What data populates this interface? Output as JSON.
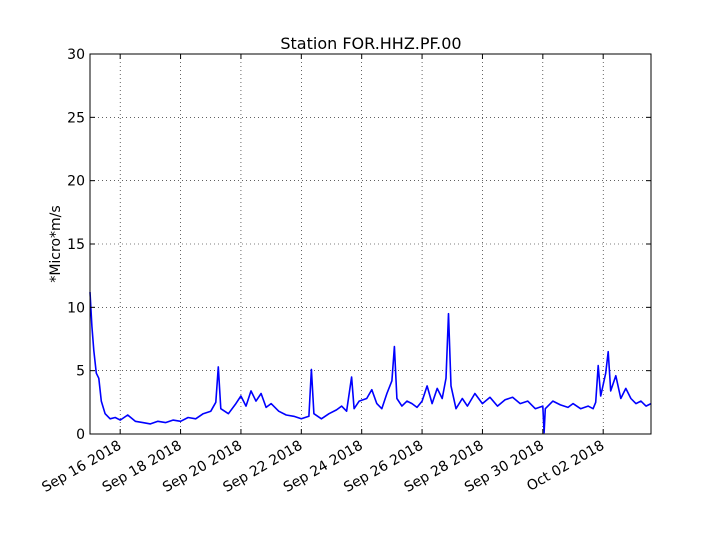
{
  "chart_data": {
    "type": "line",
    "title": "Station FOR.HHZ.PF.00",
    "xlabel": "",
    "ylabel": "*Micro*m/s",
    "ylim": [
      0,
      30
    ],
    "xlim": [
      "2018-09-15",
      "2018-10-03T14:00"
    ],
    "yticks": [
      0,
      5,
      10,
      15,
      20,
      25,
      30
    ],
    "xticks": [
      {
        "date": "2018-09-16",
        "label": "Sep 16 2018"
      },
      {
        "date": "2018-09-18",
        "label": "Sep 18 2018"
      },
      {
        "date": "2018-09-20",
        "label": "Sep 20 2018"
      },
      {
        "date": "2018-09-22",
        "label": "Sep 22 2018"
      },
      {
        "date": "2018-09-24",
        "label": "Sep 24 2018"
      },
      {
        "date": "2018-09-26",
        "label": "Sep 26 2018"
      },
      {
        "date": "2018-09-28",
        "label": "Sep 28 2018"
      },
      {
        "date": "2018-09-30",
        "label": "Sep 30 2018"
      },
      {
        "date": "2018-10-02",
        "label": "Oct 02 2018"
      }
    ],
    "grid": true,
    "series": [
      {
        "color": "#0000ff",
        "points": [
          [
            "2018-09-15T00:00",
            11.2
          ],
          [
            "2018-09-15T01:30",
            8.5
          ],
          [
            "2018-09-15T03:00",
            6.6
          ],
          [
            "2018-09-15T05:00",
            4.8
          ],
          [
            "2018-09-15T07:00",
            4.4
          ],
          [
            "2018-09-15T09:00",
            2.6
          ],
          [
            "2018-09-15T12:00",
            1.6
          ],
          [
            "2018-09-15T16:00",
            1.2
          ],
          [
            "2018-09-15T20:00",
            1.3
          ],
          [
            "2018-09-16T00:00",
            1.1
          ],
          [
            "2018-09-16T06:00",
            1.5
          ],
          [
            "2018-09-16T12:00",
            1.0
          ],
          [
            "2018-09-16T18:00",
            0.9
          ],
          [
            "2018-09-17T00:00",
            0.8
          ],
          [
            "2018-09-17T06:00",
            1.0
          ],
          [
            "2018-09-17T12:00",
            0.9
          ],
          [
            "2018-09-17T18:00",
            1.1
          ],
          [
            "2018-09-18T00:00",
            1.0
          ],
          [
            "2018-09-18T06:00",
            1.3
          ],
          [
            "2018-09-18T12:00",
            1.2
          ],
          [
            "2018-09-18T18:00",
            1.6
          ],
          [
            "2018-09-19T00:00",
            1.8
          ],
          [
            "2018-09-19T04:00",
            2.5
          ],
          [
            "2018-09-19T06:00",
            5.3
          ],
          [
            "2018-09-19T08:00",
            2.0
          ],
          [
            "2018-09-19T14:00",
            1.6
          ],
          [
            "2018-09-19T20:00",
            2.4
          ],
          [
            "2018-09-20T00:00",
            3.0
          ],
          [
            "2018-09-20T04:00",
            2.2
          ],
          [
            "2018-09-20T08:00",
            3.4
          ],
          [
            "2018-09-20T12:00",
            2.6
          ],
          [
            "2018-09-20T16:00",
            3.2
          ],
          [
            "2018-09-20T20:00",
            2.1
          ],
          [
            "2018-09-21T00:00",
            2.4
          ],
          [
            "2018-09-21T06:00",
            1.8
          ],
          [
            "2018-09-21T12:00",
            1.5
          ],
          [
            "2018-09-21T18:00",
            1.4
          ],
          [
            "2018-09-22T00:00",
            1.2
          ],
          [
            "2018-09-22T06:00",
            1.4
          ],
          [
            "2018-09-22T08:00",
            5.1
          ],
          [
            "2018-09-22T10:00",
            1.6
          ],
          [
            "2018-09-22T16:00",
            1.2
          ],
          [
            "2018-09-22T22:00",
            1.6
          ],
          [
            "2018-09-23T04:00",
            1.9
          ],
          [
            "2018-09-23T08:00",
            2.2
          ],
          [
            "2018-09-23T12:00",
            1.8
          ],
          [
            "2018-09-23T16:00",
            4.5
          ],
          [
            "2018-09-23T18:00",
            2.0
          ],
          [
            "2018-09-23T22:00",
            2.6
          ],
          [
            "2018-09-24T04:00",
            2.8
          ],
          [
            "2018-09-24T08:00",
            3.5
          ],
          [
            "2018-09-24T12:00",
            2.4
          ],
          [
            "2018-09-24T16:00",
            2.0
          ],
          [
            "2018-09-24T20:00",
            3.2
          ],
          [
            "2018-09-25T00:00",
            4.2
          ],
          [
            "2018-09-25T02:00",
            6.9
          ],
          [
            "2018-09-25T04:00",
            2.8
          ],
          [
            "2018-09-25T08:00",
            2.2
          ],
          [
            "2018-09-25T12:00",
            2.6
          ],
          [
            "2018-09-25T16:00",
            2.4
          ],
          [
            "2018-09-25T20:00",
            2.1
          ],
          [
            "2018-09-26T00:00",
            2.6
          ],
          [
            "2018-09-26T04:00",
            3.8
          ],
          [
            "2018-09-26T08:00",
            2.4
          ],
          [
            "2018-09-26T12:00",
            3.6
          ],
          [
            "2018-09-26T16:00",
            2.8
          ],
          [
            "2018-09-26T19:00",
            4.4
          ],
          [
            "2018-09-26T21:00",
            9.5
          ],
          [
            "2018-09-26T23:00",
            3.8
          ],
          [
            "2018-09-27T03:00",
            2.0
          ],
          [
            "2018-09-27T08:00",
            2.8
          ],
          [
            "2018-09-27T12:00",
            2.2
          ],
          [
            "2018-09-27T18:00",
            3.2
          ],
          [
            "2018-09-28T00:00",
            2.4
          ],
          [
            "2018-09-28T06:00",
            2.9
          ],
          [
            "2018-09-28T12:00",
            2.2
          ],
          [
            "2018-09-28T18:00",
            2.7
          ],
          [
            "2018-09-29T00:00",
            2.9
          ],
          [
            "2018-09-29T06:00",
            2.4
          ],
          [
            "2018-09-29T12:00",
            2.6
          ],
          [
            "2018-09-29T18:00",
            2.0
          ],
          [
            "2018-09-30T00:00",
            2.2
          ],
          [
            "2018-09-30T01:00",
            0.1
          ],
          [
            "2018-09-30T02:00",
            2.0
          ],
          [
            "2018-09-30T08:00",
            2.6
          ],
          [
            "2018-09-30T14:00",
            2.3
          ],
          [
            "2018-09-30T20:00",
            2.1
          ],
          [
            "2018-10-01T00:00",
            2.4
          ],
          [
            "2018-10-01T06:00",
            2.0
          ],
          [
            "2018-10-01T12:00",
            2.2
          ],
          [
            "2018-10-01T16:00",
            2.0
          ],
          [
            "2018-10-01T18:00",
            2.5
          ],
          [
            "2018-10-01T20:00",
            5.4
          ],
          [
            "2018-10-01T22:00",
            3.0
          ],
          [
            "2018-10-02T02:00",
            4.8
          ],
          [
            "2018-10-02T04:00",
            6.5
          ],
          [
            "2018-10-02T06:00",
            3.4
          ],
          [
            "2018-10-02T10:00",
            4.6
          ],
          [
            "2018-10-02T14:00",
            2.8
          ],
          [
            "2018-10-02T18:00",
            3.6
          ],
          [
            "2018-10-02T22:00",
            2.8
          ],
          [
            "2018-10-03T02:00",
            2.4
          ],
          [
            "2018-10-03T06:00",
            2.6
          ],
          [
            "2018-10-03T10:00",
            2.2
          ],
          [
            "2018-10-03T14:00",
            2.4
          ]
        ]
      }
    ]
  }
}
